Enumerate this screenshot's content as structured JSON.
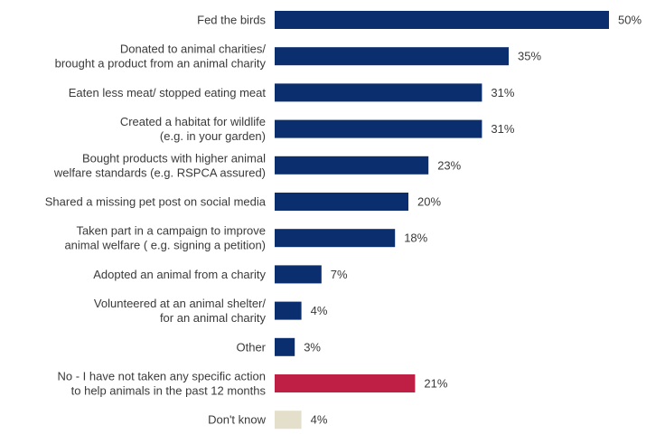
{
  "chart_data": {
    "type": "bar",
    "orientation": "horizontal",
    "categories": [
      [
        "Fed the birds"
      ],
      [
        "Donated to animal charities/",
        "brought a product from an animal charity"
      ],
      [
        "Eaten less meat/ stopped eating meat"
      ],
      [
        "Created a habitat for wildlife",
        "(e.g. in your garden)"
      ],
      [
        "Bought products with higher animal",
        "welfare standards (e.g. RSPCA assured)"
      ],
      [
        "Shared a missing pet post on social media"
      ],
      [
        "Taken part in a campaign to improve",
        "animal welfare ( e.g. signing a petition)"
      ],
      [
        "Adopted an animal from a charity"
      ],
      [
        "Volunteered at an animal shelter/",
        "for an animal charity"
      ],
      [
        "Other"
      ],
      [
        "No - I have not taken any specific action",
        "to help animals in the past 12 months"
      ],
      [
        "Don't know"
      ]
    ],
    "values": [
      50,
      35,
      31,
      31,
      23,
      20,
      18,
      7,
      4,
      3,
      21,
      4
    ],
    "value_labels": [
      "50%",
      "35%",
      "31%",
      "31%",
      "23%",
      "20%",
      "18%",
      "7%",
      "4%",
      "3%",
      "21%",
      "4%"
    ],
    "bar_colors": [
      "#0b2e6e",
      "#0b2e6e",
      "#0b2e6e",
      "#0b2e6e",
      "#0b2e6e",
      "#0b2e6e",
      "#0b2e6e",
      "#0b2e6e",
      "#0b2e6e",
      "#0b2e6e",
      "#bf1e45",
      "#e3dfcb"
    ],
    "xlim": [
      0,
      50
    ],
    "title": "",
    "xlabel": "",
    "ylabel": "",
    "grid": false,
    "legend": "none"
  }
}
